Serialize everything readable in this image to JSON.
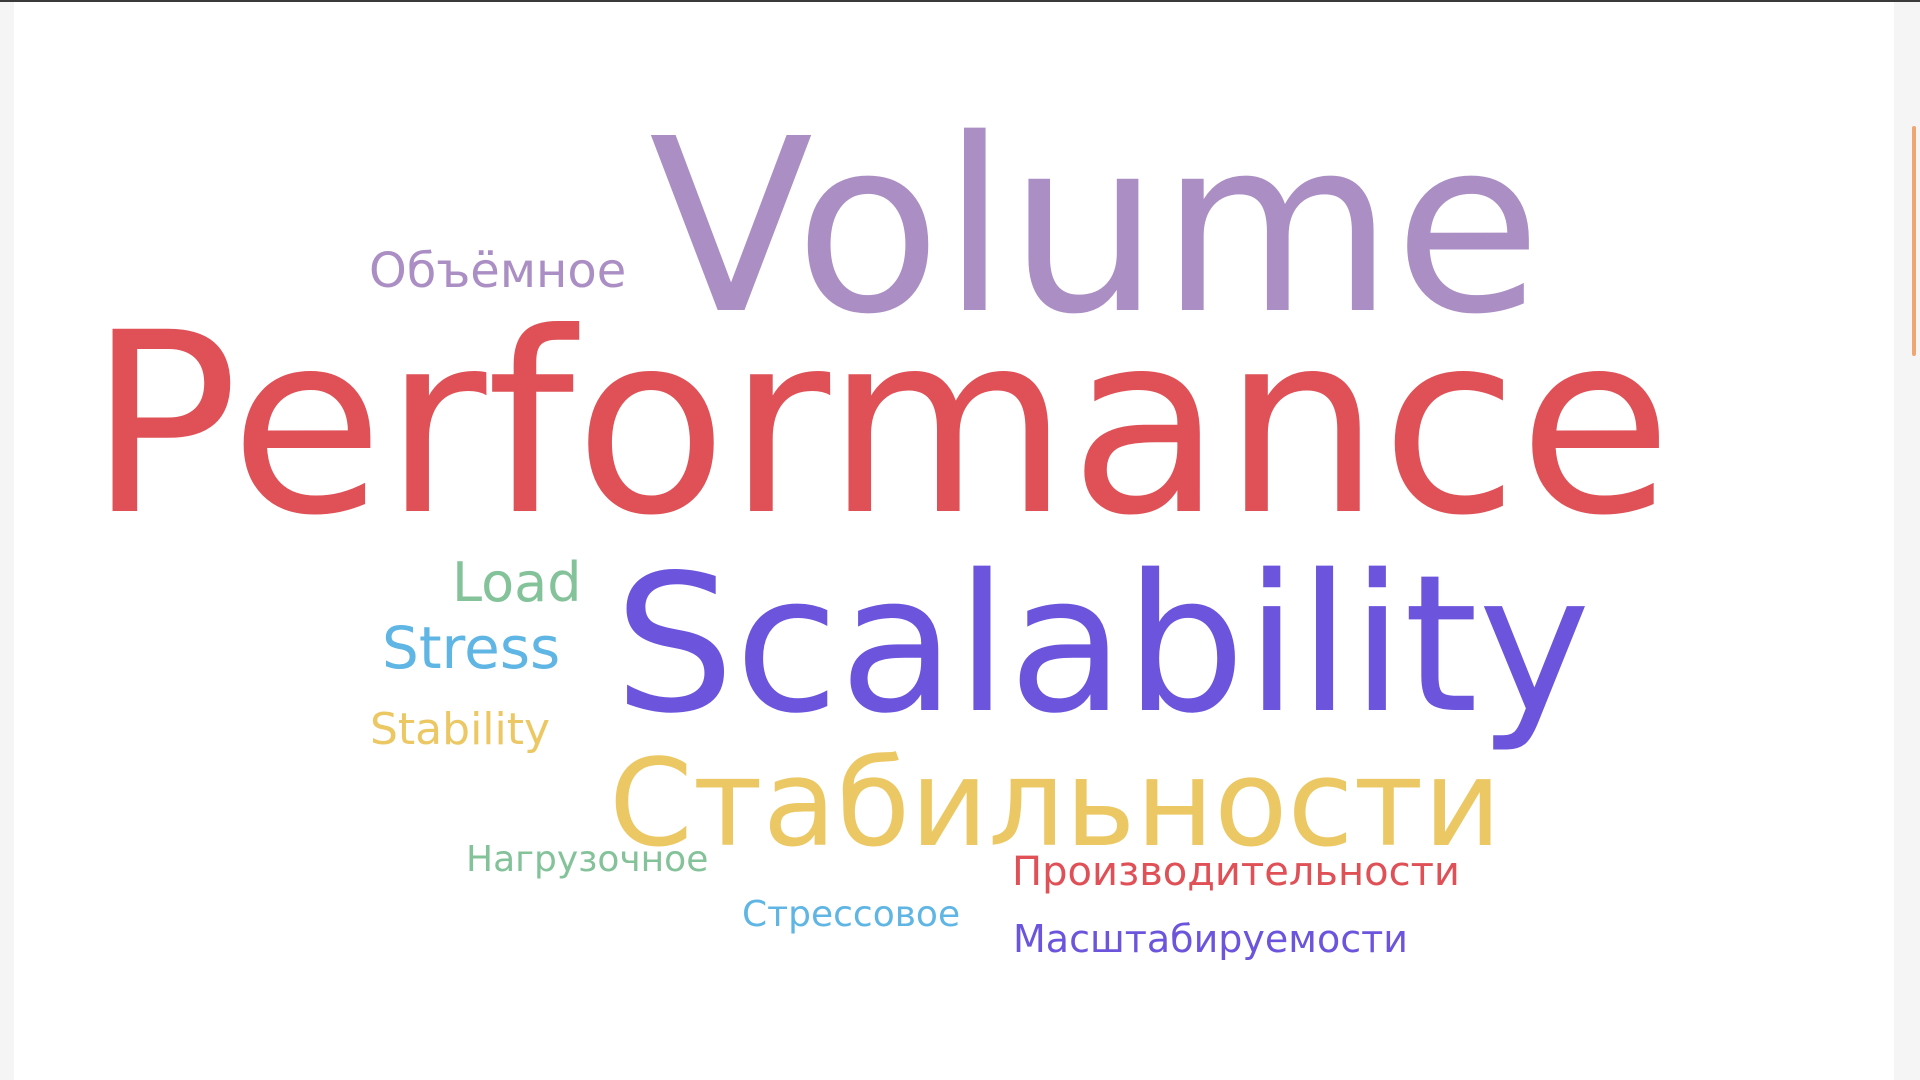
{
  "word_cloud": {
    "words": [
      {
        "key": "volume",
        "text": "Volume",
        "color": "#ab8fc4"
      },
      {
        "key": "performance",
        "text": "Performance",
        "color": "#df5156"
      },
      {
        "key": "scalability",
        "text": "Scalability",
        "color": "#6c54dd"
      },
      {
        "key": "stabilnosti",
        "text": "Стабильности",
        "color": "#ecc865"
      },
      {
        "key": "obemnoe",
        "text": "Объёмное",
        "color": "#ab8fc4"
      },
      {
        "key": "load",
        "text": "Load",
        "color": "#84c29a"
      },
      {
        "key": "stress",
        "text": "Stress",
        "color": "#5fb5e4"
      },
      {
        "key": "stability",
        "text": "Stability",
        "color": "#ecc865"
      },
      {
        "key": "nagruzochnoe",
        "text": "Нагрузочное",
        "color": "#84c29a"
      },
      {
        "key": "proizvoditelnosti",
        "text": "Производительности",
        "color": "#df5156"
      },
      {
        "key": "stressovoe",
        "text": "Стрессовое",
        "color": "#5fb5e4"
      },
      {
        "key": "masshtabiruemosti",
        "text": "Масштабируемости",
        "color": "#6c54dd"
      }
    ]
  },
  "scrollbar": {
    "color": "#f0a672"
  }
}
